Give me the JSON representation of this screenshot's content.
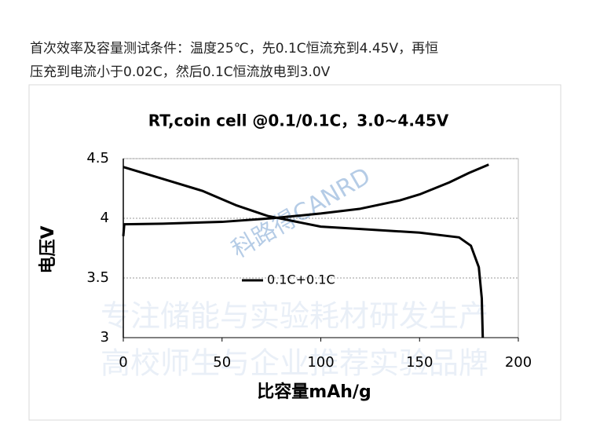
{
  "caption_lines": [
    "首次效率及容量测试条件：温度25℃，先0.1C恒流充到4.45V，再恒",
    "压充到电流小于0.02C，然后0.1C恒流放电到3.0V"
  ],
  "watermark": [
    "科路得CANRD",
    "专注储能与实验耗材研发生产",
    "高校师生与企业推荐实验品牌"
  ],
  "chart_data": {
    "type": "line",
    "title": "RT,coin cell @0.1/0.1C，3.0~4.45V",
    "x_label": "比容量mAh/g",
    "y_label": "电压V",
    "xlim": [
      0,
      200
    ],
    "xticks": [
      0,
      50,
      100,
      150,
      200
    ],
    "ylim": [
      3,
      4.5
    ],
    "yticks": [
      3,
      3.5,
      4,
      4.5
    ],
    "grid": true,
    "series": [
      {
        "name": "0.1C+0.1C",
        "color": "#000000",
        "x": [
          0,
          0.5,
          20,
          50,
          75,
          100,
          120,
          140,
          150,
          165,
          175,
          185,
          null,
          0,
          20,
          40,
          57,
          73,
          100,
          120,
          150,
          170,
          176,
          180,
          181.5,
          182
        ],
        "values": [
          3.85,
          3.95,
          3.955,
          3.97,
          4.0,
          4.04,
          4.08,
          4.15,
          4.2,
          4.3,
          4.38,
          4.45,
          null,
          4.43,
          4.33,
          4.23,
          4.11,
          4.02,
          3.93,
          3.91,
          3.88,
          3.84,
          3.77,
          3.59,
          3.33,
          3.0
        ]
      }
    ]
  }
}
